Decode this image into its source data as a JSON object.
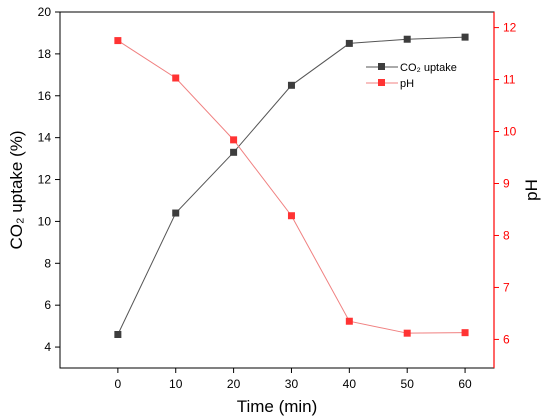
{
  "chart_data": {
    "type": "line",
    "x": [
      0,
      10,
      20,
      30,
      40,
      50,
      60
    ],
    "xlabel": "Time (min)",
    "xlim": [
      -10,
      65
    ],
    "x_ticks": [
      0,
      10,
      20,
      30,
      40,
      50,
      60
    ],
    "y_left": {
      "label": "CO₂  uptake (%)",
      "lim": [
        3,
        20
      ],
      "ticks": [
        4,
        6,
        8,
        10,
        12,
        14,
        16,
        18,
        20
      ],
      "color": "#000000"
    },
    "y_right": {
      "label": "pH",
      "lim": [
        5.45,
        12.3
      ],
      "ticks": [
        6,
        7,
        8,
        9,
        10,
        11,
        12
      ],
      "color": "#ff0000"
    },
    "series": [
      {
        "name": "CO₂  uptake",
        "axis": "left",
        "color": "#555555",
        "marker_color": "#3d3d3d",
        "values": [
          4.6,
          10.4,
          13.3,
          16.5,
          18.5,
          18.7,
          18.8
        ]
      },
      {
        "name": "pH",
        "axis": "right",
        "color": "#f08080",
        "marker_color": "#ff3333",
        "values": [
          11.75,
          11.03,
          9.84,
          8.38,
          6.35,
          6.12,
          6.13
        ]
      }
    ],
    "legend_position": "top-right",
    "grid": false
  }
}
